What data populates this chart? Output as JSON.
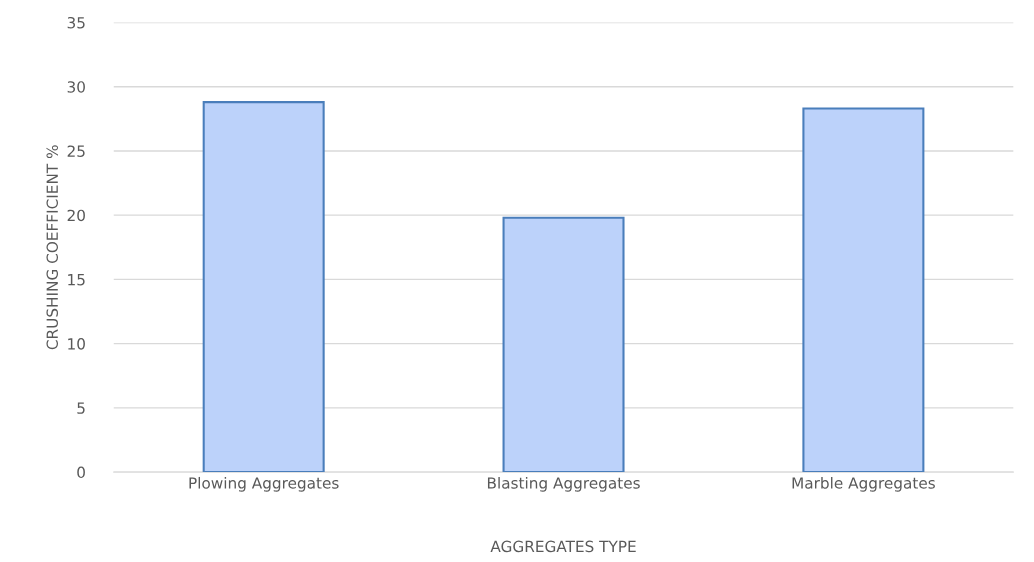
{
  "chart_data": {
    "type": "bar",
    "xlabel": "AGGREGATES TYPE",
    "ylabel": "CRUSHING COEFFICIENT %",
    "categories": [
      "Plowing Aggregates",
      "Blasting Aggregates",
      "Marble Aggregates"
    ],
    "values": [
      28.8,
      19.8,
      28.3
    ],
    "color": "#bcd2fa",
    "ylim": [
      0,
      35
    ],
    "yticks": [
      0,
      5,
      10,
      15,
      20,
      25,
      30,
      35
    ],
    "grid": "y",
    "legend": false
  }
}
